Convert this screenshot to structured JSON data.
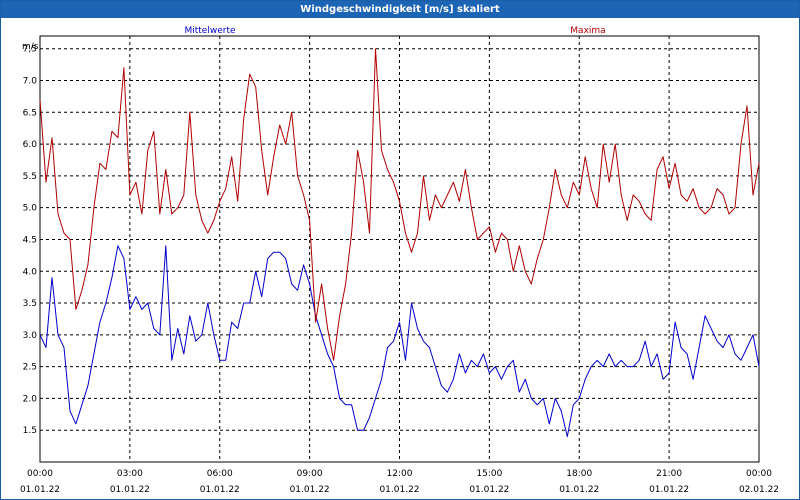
{
  "window": {
    "title": "Windgeschwindigkeit [m/s] skaliert"
  },
  "chart_data": {
    "type": "line",
    "title": "Windgeschwindigkeit [m/s] skaliert",
    "ylabel": "m/s",
    "xlabel": "",
    "ylim": [
      1.0,
      7.7
    ],
    "xlim_hours": [
      0,
      24
    ],
    "grid": true,
    "x_ticks": [
      {
        "time": "00:00",
        "date": "01.01.22"
      },
      {
        "time": "03:00",
        "date": "01.01.22"
      },
      {
        "time": "06:00",
        "date": "01.01.22"
      },
      {
        "time": "09:00",
        "date": "01.01.22"
      },
      {
        "time": "12:00",
        "date": "01.01.22"
      },
      {
        "time": "15:00",
        "date": "01.01.22"
      },
      {
        "time": "18:00",
        "date": "01.01.22"
      },
      {
        "time": "21:00",
        "date": "01.01.22"
      },
      {
        "time": "00:00",
        "date": "02.01.22"
      }
    ],
    "y_ticks": [
      "1.5",
      "2.0",
      "2.5",
      "3.0",
      "3.5",
      "4.0",
      "4.5",
      "5.0",
      "5.5",
      "6.0",
      "6.5",
      "7.0",
      "7,5"
    ],
    "series": [
      {
        "name": "Mittelwerte",
        "color": "#0000cc",
        "x": [
          0.0,
          0.2,
          0.4,
          0.6,
          0.8,
          1.0,
          1.2,
          1.4,
          1.6,
          1.8,
          2.0,
          2.2,
          2.4,
          2.6,
          2.8,
          3.0,
          3.2,
          3.4,
          3.6,
          3.8,
          4.0,
          4.2,
          4.4,
          4.6,
          4.8,
          5.0,
          5.2,
          5.4,
          5.6,
          5.8,
          6.0,
          6.2,
          6.4,
          6.6,
          6.8,
          7.0,
          7.2,
          7.4,
          7.6,
          7.8,
          8.0,
          8.2,
          8.4,
          8.6,
          8.8,
          9.0,
          9.2,
          9.4,
          9.6,
          9.8,
          10.0,
          10.2,
          10.4,
          10.6,
          10.8,
          11.0,
          11.2,
          11.4,
          11.6,
          11.8,
          12.0,
          12.2,
          12.4,
          12.6,
          12.8,
          13.0,
          13.2,
          13.4,
          13.6,
          13.8,
          14.0,
          14.2,
          14.4,
          14.6,
          14.8,
          15.0,
          15.2,
          15.4,
          15.6,
          15.8,
          16.0,
          16.2,
          16.4,
          16.6,
          16.8,
          17.0,
          17.2,
          17.4,
          17.6,
          17.8,
          18.0,
          18.2,
          18.4,
          18.6,
          18.8,
          19.0,
          19.2,
          19.4,
          19.6,
          19.8,
          20.0,
          20.2,
          20.4,
          20.6,
          20.8,
          21.0,
          21.2,
          21.4,
          21.6,
          21.8,
          22.0,
          22.2,
          22.4,
          22.6,
          22.8,
          23.0,
          23.2,
          23.4,
          23.6,
          23.8,
          24.0
        ],
        "values": [
          3.0,
          2.8,
          3.9,
          3.0,
          2.8,
          1.8,
          1.6,
          1.9,
          2.2,
          2.7,
          3.2,
          3.5,
          3.9,
          4.4,
          4.2,
          3.4,
          3.6,
          3.4,
          3.5,
          3.1,
          3.0,
          4.4,
          2.6,
          3.1,
          2.7,
          3.3,
          2.9,
          3.0,
          3.5,
          3.0,
          2.6,
          2.6,
          3.2,
          3.1,
          3.5,
          3.5,
          4.0,
          3.6,
          4.2,
          4.3,
          4.3,
          4.2,
          3.8,
          3.7,
          4.1,
          3.8,
          3.3,
          3.0,
          2.7,
          2.5,
          2.0,
          1.9,
          1.9,
          1.5,
          1.5,
          1.7,
          2.0,
          2.3,
          2.8,
          2.9,
          3.2,
          2.6,
          3.5,
          3.1,
          2.9,
          2.8,
          2.5,
          2.2,
          2.1,
          2.3,
          2.7,
          2.4,
          2.6,
          2.5,
          2.7,
          2.4,
          2.5,
          2.3,
          2.5,
          2.6,
          2.1,
          2.3,
          2.0,
          1.9,
          2.0,
          1.6,
          2.0,
          1.8,
          1.4,
          1.9,
          2.0,
          2.3,
          2.5,
          2.6,
          2.5,
          2.7,
          2.5,
          2.6,
          2.5,
          2.5,
          2.6,
          2.9,
          2.5,
          2.7,
          2.3,
          2.4,
          3.2,
          2.8,
          2.7,
          2.3,
          2.8,
          3.3,
          3.1,
          2.9,
          2.8,
          3.0,
          2.7,
          2.6,
          2.8,
          3.0,
          2.5
        ],
        "hours": "x"
      },
      {
        "name": "Maxima",
        "color": "#b00000",
        "x": [
          0.0,
          0.2,
          0.4,
          0.6,
          0.8,
          1.0,
          1.2,
          1.4,
          1.6,
          1.8,
          2.0,
          2.2,
          2.4,
          2.6,
          2.8,
          3.0,
          3.2,
          3.4,
          3.6,
          3.8,
          4.0,
          4.2,
          4.4,
          4.6,
          4.8,
          5.0,
          5.2,
          5.4,
          5.6,
          5.8,
          6.0,
          6.2,
          6.4,
          6.6,
          6.8,
          7.0,
          7.2,
          7.4,
          7.6,
          7.8,
          8.0,
          8.2,
          8.4,
          8.6,
          8.8,
          9.0,
          9.2,
          9.4,
          9.6,
          9.8,
          10.0,
          10.2,
          10.4,
          10.6,
          10.8,
          11.0,
          11.2,
          11.4,
          11.6,
          11.8,
          12.0,
          12.2,
          12.4,
          12.6,
          12.8,
          13.0,
          13.2,
          13.4,
          13.6,
          13.8,
          14.0,
          14.2,
          14.4,
          14.6,
          14.8,
          15.0,
          15.2,
          15.4,
          15.6,
          15.8,
          16.0,
          16.2,
          16.4,
          16.6,
          16.8,
          17.0,
          17.2,
          17.4,
          17.6,
          17.8,
          18.0,
          18.2,
          18.4,
          18.6,
          18.8,
          19.0,
          19.2,
          19.4,
          19.6,
          19.8,
          20.0,
          20.2,
          20.4,
          20.6,
          20.8,
          21.0,
          21.2,
          21.4,
          21.6,
          21.8,
          22.0,
          22.2,
          22.4,
          22.6,
          22.8,
          23.0,
          23.2,
          23.4,
          23.6,
          23.8,
          24.0
        ],
        "values": [
          6.7,
          5.4,
          6.1,
          4.9,
          4.6,
          4.5,
          3.4,
          3.7,
          4.1,
          5.0,
          5.7,
          5.6,
          6.2,
          6.1,
          7.2,
          5.2,
          5.4,
          4.9,
          5.9,
          6.2,
          4.9,
          5.6,
          4.9,
          5.0,
          5.2,
          6.5,
          5.2,
          4.8,
          4.6,
          4.8,
          5.1,
          5.3,
          5.8,
          5.1,
          6.4,
          7.1,
          6.9,
          5.9,
          5.2,
          5.8,
          6.3,
          6.0,
          6.5,
          5.5,
          5.2,
          4.8,
          3.2,
          3.8,
          3.1,
          2.6,
          3.3,
          3.8,
          4.6,
          5.9,
          5.4,
          4.6,
          7.5,
          5.9,
          5.6,
          5.4,
          5.1,
          4.6,
          4.3,
          4.6,
          5.5,
          4.8,
          5.2,
          5.0,
          5.2,
          5.4,
          5.1,
          5.6,
          5.0,
          4.5,
          4.6,
          4.7,
          4.3,
          4.6,
          4.5,
          4.0,
          4.4,
          4.0,
          3.8,
          4.2,
          4.5,
          5.0,
          5.6,
          5.2,
          5.0,
          5.4,
          5.2,
          5.8,
          5.3,
          5.0,
          6.0,
          5.4,
          6.0,
          5.2,
          4.8,
          5.2,
          5.1,
          4.9,
          4.8,
          5.6,
          5.8,
          5.3,
          5.7,
          5.2,
          5.1,
          5.3,
          5.0,
          4.9,
          5.0,
          5.3,
          5.2,
          4.9,
          5.0,
          6.0,
          6.6,
          5.2,
          5.7
        ],
        "hours": "x"
      }
    ]
  }
}
